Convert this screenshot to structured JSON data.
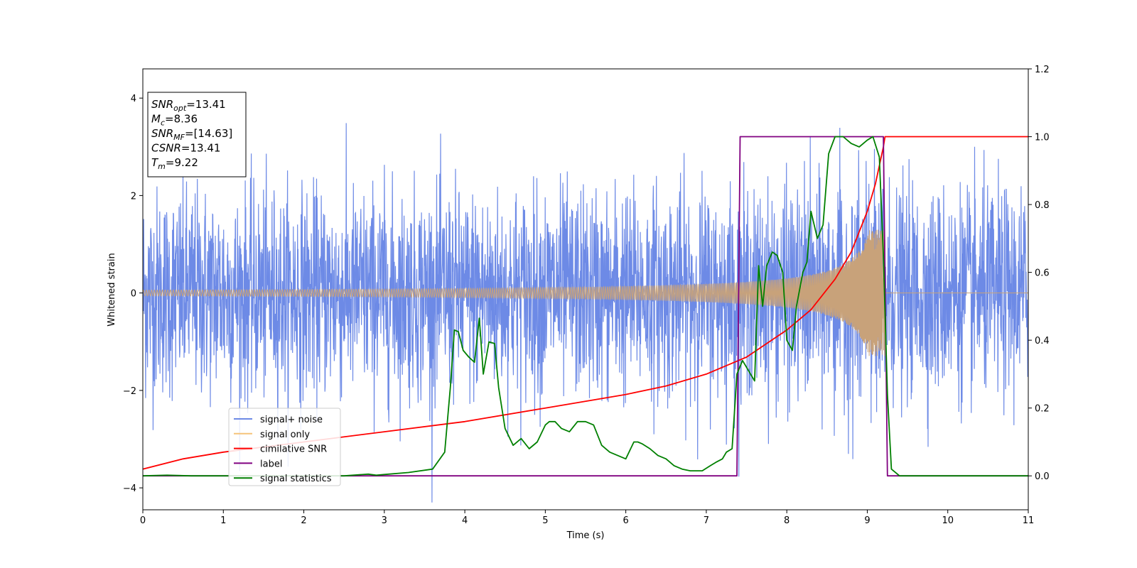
{
  "chart_data": {
    "type": "line",
    "xlabel": "Time (s)",
    "ylabel": "Whitened strain",
    "xlim": [
      0,
      11
    ],
    "ylim_left": [
      -4.45,
      4.6
    ],
    "ylim_right": [
      -0.1,
      1.2
    ],
    "x_ticks": [
      "0",
      "1",
      "2",
      "3",
      "4",
      "5",
      "6",
      "7",
      "8",
      "9",
      "10",
      "11"
    ],
    "y_left_ticks": [
      "4",
      "2",
      "0",
      "−2",
      "−4"
    ],
    "y_left_tick_values": [
      4,
      2,
      0,
      -2,
      -4
    ],
    "y_right_ticks": [
      "1.2",
      "1.0",
      "0.8",
      "0.6",
      "0.4",
      "0.2",
      "0.0"
    ],
    "y_right_tick_values": [
      1.2,
      1.0,
      0.8,
      0.6,
      0.4,
      0.2,
      0.0
    ],
    "info_box": [
      {
        "main": "SNR",
        "sub": "opt",
        "value": "=13.41"
      },
      {
        "main": "M",
        "sub": "c",
        "value": "=8.36"
      },
      {
        "main": "SNR",
        "sub": "MF",
        "value": "=[14.63]"
      },
      {
        "main": "CSNR",
        "sub": "",
        "value": "=13.41"
      },
      {
        "main": "T",
        "sub": "m",
        "value": "=9.22"
      }
    ],
    "legend": [
      {
        "label": "signal+ noise",
        "color": "#6d8ae6"
      },
      {
        "label": "signal only",
        "color": "#f5c37a"
      },
      {
        "label": "cimilative SNR",
        "color": "#ff0000"
      },
      {
        "label": "label",
        "color": "#800080"
      },
      {
        "label": "signal statistics",
        "color": "#008000"
      }
    ],
    "series": [
      {
        "name": "signal+ noise",
        "axis": "left",
        "color": "#6d8ae6",
        "description_noise_std": 1.05,
        "x_range": [
          0,
          11
        ]
      },
      {
        "name": "signal only",
        "axis": "left",
        "color": "#c8a27a",
        "chirp_end_time": 9.22,
        "peak_amplitude": 1.3
      },
      {
        "name": "cimilative SNR",
        "axis": "right",
        "color": "#ff0000",
        "x": [
          0,
          0.5,
          1,
          2,
          3,
          4,
          5,
          6,
          6.5,
          7,
          7.5,
          8,
          8.3,
          8.6,
          8.8,
          9.0,
          9.1,
          9.2,
          9.22,
          11
        ],
        "y": [
          0.02,
          0.05,
          0.07,
          0.1,
          0.13,
          0.16,
          0.2,
          0.24,
          0.265,
          0.3,
          0.35,
          0.43,
          0.49,
          0.58,
          0.66,
          0.78,
          0.86,
          0.97,
          1.0,
          1.0
        ]
      },
      {
        "name": "label",
        "axis": "right",
        "color": "#800080",
        "x": [
          0,
          7.38,
          7.42,
          9.2,
          9.25,
          11
        ],
        "y": [
          0,
          0,
          1,
          1,
          0,
          0
        ]
      },
      {
        "name": "signal statistics",
        "axis": "right",
        "color": "#008000",
        "x": [
          0,
          0.3,
          0.6,
          1,
          1.5,
          2,
          2.5,
          2.8,
          2.9,
          3,
          3.3,
          3.6,
          3.75,
          3.82,
          3.87,
          3.92,
          3.98,
          4.05,
          4.12,
          4.18,
          4.23,
          4.3,
          4.37,
          4.42,
          4.5,
          4.6,
          4.7,
          4.8,
          4.9,
          5.0,
          5.05,
          5.12,
          5.2,
          5.3,
          5.4,
          5.5,
          5.6,
          5.7,
          5.8,
          5.9,
          6.0,
          6.1,
          6.15,
          6.2,
          6.3,
          6.4,
          6.5,
          6.6,
          6.7,
          6.8,
          6.95,
          7.05,
          7.12,
          7.2,
          7.25,
          7.32,
          7.38,
          7.45,
          7.55,
          7.6,
          7.65,
          7.7,
          7.75,
          7.82,
          7.88,
          7.95,
          8.0,
          8.07,
          8.12,
          8.2,
          8.25,
          8.3,
          8.38,
          8.45,
          8.52,
          8.6,
          8.7,
          8.8,
          8.9,
          9.0,
          9.07,
          9.15,
          9.2,
          9.25,
          9.3,
          9.4,
          11
        ],
        "y": [
          0.0,
          0.002,
          0.0,
          0.0,
          0.0,
          0.0,
          0.0,
          0.005,
          0.002,
          0.004,
          0.01,
          0.02,
          0.07,
          0.26,
          0.43,
          0.425,
          0.37,
          0.35,
          0.335,
          0.465,
          0.3,
          0.395,
          0.39,
          0.26,
          0.14,
          0.09,
          0.11,
          0.08,
          0.1,
          0.15,
          0.16,
          0.16,
          0.14,
          0.13,
          0.16,
          0.16,
          0.15,
          0.09,
          0.07,
          0.06,
          0.05,
          0.1,
          0.1,
          0.095,
          0.08,
          0.06,
          0.05,
          0.03,
          0.02,
          0.015,
          0.015,
          0.03,
          0.04,
          0.05,
          0.07,
          0.08,
          0.3,
          0.34,
          0.3,
          0.28,
          0.62,
          0.5,
          0.62,
          0.66,
          0.65,
          0.6,
          0.4,
          0.37,
          0.5,
          0.6,
          0.63,
          0.78,
          0.7,
          0.74,
          0.95,
          1.0,
          1.0,
          0.98,
          0.97,
          0.99,
          1.0,
          0.94,
          0.65,
          0.24,
          0.02,
          0.0,
          0.0
        ]
      }
    ]
  }
}
